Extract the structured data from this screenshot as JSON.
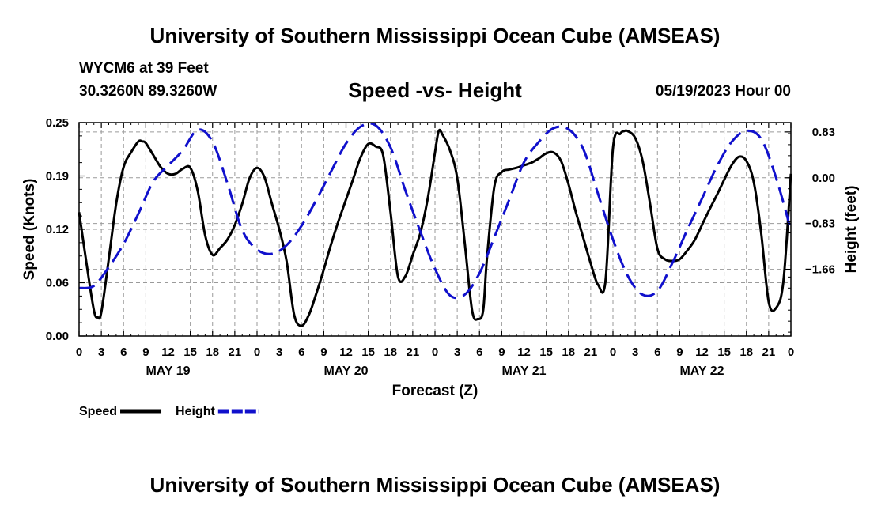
{
  "header": {
    "title": "University of Southern Mississippi Ocean Cube (AMSEAS)",
    "station": "WYCM6 at 39 Feet",
    "coordinates": "30.3260N  89.3260W",
    "datetime": "05/19/2023 Hour 00"
  },
  "footer": {
    "title": "University of Southern Mississippi Ocean Cube (AMSEAS)"
  },
  "chart_data": {
    "type": "line",
    "title": "Speed -vs- Height",
    "xlabel": "Forecast (Z)",
    "ylabel": "Speed (Knots)",
    "y2label": "Height (feet)",
    "xlim": [
      0,
      96
    ],
    "ylim": [
      0,
      0.25
    ],
    "y2lim": [
      -2.87,
      1.0
    ],
    "grid": true,
    "x_tick_labels": [
      "0",
      "3",
      "6",
      "9",
      "12",
      "15",
      "18",
      "21",
      "0",
      "3",
      "6",
      "9",
      "12",
      "15",
      "18",
      "21",
      "0",
      "3",
      "6",
      "9",
      "12",
      "15",
      "18",
      "21",
      "0",
      "3",
      "6",
      "9",
      "12",
      "15",
      "18",
      "21",
      "0"
    ],
    "day_labels": [
      {
        "label": "MAY 19",
        "hour": 12
      },
      {
        "label": "MAY 20",
        "hour": 36
      },
      {
        "label": "MAY 21",
        "hour": 60
      },
      {
        "label": "MAY 22",
        "hour": 84
      }
    ],
    "y_ticks": [
      "0.00",
      "0.06",
      "0.12",
      "0.19",
      "0.25"
    ],
    "y2_ticks": [
      {
        "value": 0.83,
        "label": "0.83"
      },
      {
        "value": 0.0,
        "label": "0.00"
      },
      {
        "value": -0.83,
        "label": "−0.83"
      },
      {
        "value": -1.66,
        "label": "−1.66"
      }
    ],
    "legend": [
      {
        "name": "Speed",
        "color": "#000000",
        "dash": false
      },
      {
        "name": "Height",
        "color": "#1010cc",
        "dash": true
      }
    ],
    "series": [
      {
        "name": "Speed",
        "axis": "left",
        "color": "#000000",
        "x": [
          0,
          1,
          2,
          2.5,
          3,
          4,
          5,
          6,
          7,
          8,
          8.5,
          9,
          10,
          11,
          12,
          13,
          14,
          15,
          16,
          17,
          18,
          19,
          20,
          21,
          22,
          23,
          24,
          25,
          26,
          27,
          28,
          29,
          30,
          31,
          32,
          33,
          34,
          35,
          36,
          37,
          38,
          39,
          40,
          41,
          42,
          43,
          44,
          45,
          46,
          47,
          48,
          48.5,
          49,
          50,
          51,
          52,
          53,
          53.8,
          54.5,
          55,
          56,
          57,
          58,
          59,
          60,
          61,
          62,
          63,
          64,
          65,
          66,
          67,
          68,
          69,
          70,
          71,
          72,
          73,
          73.5,
          74,
          75,
          76,
          77,
          78,
          79,
          80,
          81,
          82,
          83,
          84,
          85,
          86,
          87,
          88,
          89,
          90,
          91,
          92,
          93,
          94,
          95,
          96
        ],
        "values": [
          0.145,
          0.085,
          0.03,
          0.022,
          0.028,
          0.09,
          0.155,
          0.198,
          0.215,
          0.228,
          0.228,
          0.226,
          0.212,
          0.198,
          0.19,
          0.19,
          0.196,
          0.197,
          0.17,
          0.118,
          0.095,
          0.103,
          0.113,
          0.13,
          0.155,
          0.185,
          0.197,
          0.186,
          0.155,
          0.125,
          0.087,
          0.025,
          0.012,
          0.025,
          0.05,
          0.078,
          0.108,
          0.135,
          0.16,
          0.185,
          0.21,
          0.225,
          0.222,
          0.212,
          0.145,
          0.07,
          0.07,
          0.095,
          0.12,
          0.16,
          0.215,
          0.24,
          0.236,
          0.218,
          0.185,
          0.11,
          0.03,
          0.02,
          0.03,
          0.09,
          0.175,
          0.192,
          0.195,
          0.197,
          0.2,
          0.203,
          0.208,
          0.214,
          0.215,
          0.205,
          0.178,
          0.145,
          0.115,
          0.085,
          0.06,
          0.065,
          0.22,
          0.237,
          0.24,
          0.24,
          0.232,
          0.205,
          0.155,
          0.102,
          0.09,
          0.088,
          0.09,
          0.1,
          0.112,
          0.13,
          0.148,
          0.165,
          0.183,
          0.2,
          0.21,
          0.205,
          0.18,
          0.12,
          0.04,
          0.033,
          0.065,
          0.19
        ]
      },
      {
        "name": "Height",
        "axis": "right",
        "color": "#1010cc",
        "x": [
          0,
          2,
          4,
          6,
          8,
          10,
          12,
          14,
          16,
          18,
          20,
          22,
          24,
          26,
          28,
          30,
          32,
          34,
          36,
          38,
          40,
          42,
          44,
          46,
          48,
          50,
          52,
          54,
          56,
          58,
          60,
          62,
          64,
          66,
          68,
          70,
          72,
          74,
          76,
          78,
          80,
          82,
          84,
          86,
          88,
          90,
          92,
          94,
          96
        ],
        "values": [
          -2.0,
          -1.96,
          -1.62,
          -1.2,
          -0.65,
          -0.07,
          0.22,
          0.5,
          0.87,
          0.65,
          -0.1,
          -0.95,
          -1.3,
          -1.38,
          -1.22,
          -0.87,
          -0.4,
          0.12,
          0.62,
          0.93,
          0.95,
          0.55,
          -0.23,
          -0.97,
          -1.65,
          -2.13,
          -2.12,
          -1.73,
          -1.08,
          -0.4,
          0.28,
          0.65,
          0.9,
          0.88,
          0.52,
          -0.3,
          -1.12,
          -1.78,
          -2.12,
          -2.05,
          -1.55,
          -0.95,
          -0.38,
          0.2,
          0.65,
          0.85,
          0.7,
          0.0,
          -0.95
        ]
      }
    ]
  }
}
